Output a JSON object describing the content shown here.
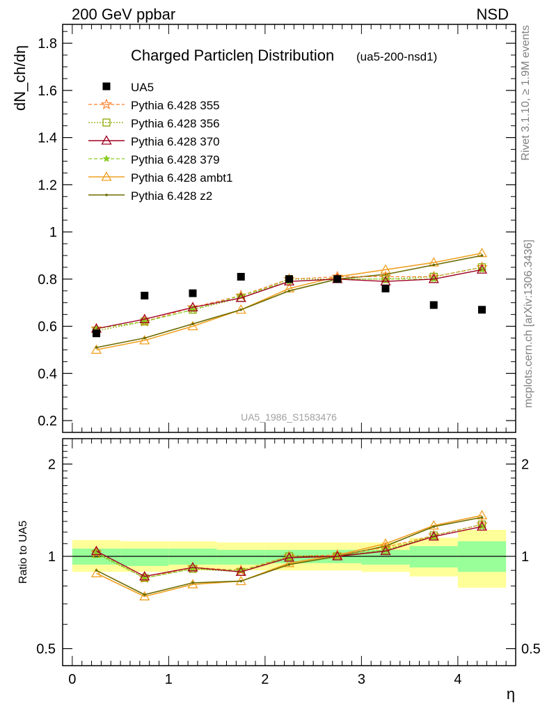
{
  "header": {
    "left": "200 GeV ppbar",
    "right": "NSD"
  },
  "side_texts": {
    "rivet": "Rivet 3.1.10, ≥ 1.9M events",
    "mcplots": "mcplots.cern.ch [arXiv:1306.3436]"
  },
  "colors": {
    "data": "#000000",
    "band_inner": "#99ff99",
    "band_outer": "#ffff99",
    "p355": "#ff7f2a",
    "p356": "#8aa800",
    "p370": "#a00022",
    "p379": "#88cc22",
    "ambt1": "#f0a020",
    "z2": "#6b6b00"
  },
  "chart_data": [
    {
      "type": "scatter",
      "title": "Charged Particleη Distribution",
      "title_suffix": "(ua5-200-nsd1)",
      "watermark": "UA5_1986_S1583476",
      "ylabel": "dN_ch/dη",
      "xlim": [
        -0.1,
        4.6
      ],
      "ylim": [
        0.15,
        1.88
      ],
      "yticks": [
        0.2,
        0.4,
        0.6,
        0.8,
        1,
        1.2,
        1.4,
        1.6,
        1.8
      ],
      "ytick_labels": [
        "0.2",
        "0.4",
        "0.6",
        "0.8",
        "1",
        "1.2",
        "1.4",
        "1.6",
        "1.8"
      ],
      "x": [
        0.25,
        0.75,
        1.25,
        1.75,
        2.25,
        2.75,
        3.25,
        3.75,
        4.25
      ],
      "legend_position": "top-left",
      "series": [
        {
          "name": "UA5",
          "key": "data",
          "values": [
            0.57,
            0.73,
            0.74,
            0.81,
            0.8,
            0.8,
            0.76,
            0.69,
            0.67
          ]
        },
        {
          "name": "Pythia 6.428 355",
          "key": "p355",
          "values": [
            0.59,
            0.62,
            0.68,
            0.73,
            0.8,
            0.81,
            0.81,
            0.81,
            0.85
          ]
        },
        {
          "name": "Pythia 6.428 356",
          "key": "p356",
          "values": [
            0.58,
            0.62,
            0.67,
            0.72,
            0.8,
            0.8,
            0.8,
            0.81,
            0.85
          ]
        },
        {
          "name": "Pythia 6.428 370",
          "key": "p370",
          "values": [
            0.59,
            0.63,
            0.68,
            0.72,
            0.79,
            0.8,
            0.79,
            0.8,
            0.84
          ]
        },
        {
          "name": "Pythia 6.428 379",
          "key": "p379",
          "values": [
            0.59,
            0.62,
            0.67,
            0.73,
            0.79,
            0.8,
            0.8,
            0.8,
            0.84
          ]
        },
        {
          "name": "Pythia 6.428 ambt1",
          "key": "ambt1",
          "values": [
            0.5,
            0.54,
            0.6,
            0.67,
            0.76,
            0.81,
            0.84,
            0.87,
            0.91
          ]
        },
        {
          "name": "Pythia 6.428 z2",
          "key": "z2",
          "values": [
            0.51,
            0.55,
            0.61,
            0.67,
            0.75,
            0.8,
            0.82,
            0.86,
            0.9
          ]
        }
      ]
    },
    {
      "type": "line",
      "ylabel": "Ratio to UA5",
      "xlabel": "η",
      "xlim": [
        -0.1,
        4.6
      ],
      "ylim": [
        0.44,
        2.42
      ],
      "yscale": "log",
      "yticks": [
        0.5,
        1,
        2
      ],
      "ytick_labels": [
        "0.5",
        "1",
        "2"
      ],
      "xticks": [
        0,
        1,
        2,
        3,
        4
      ],
      "xtick_labels": [
        "0",
        "1",
        "2",
        "3",
        "4"
      ],
      "x": [
        0.25,
        0.75,
        1.25,
        1.75,
        2.25,
        2.75,
        3.25,
        3.75,
        4.25
      ],
      "bin_edges": [
        0,
        0.5,
        1.0,
        1.5,
        2.0,
        2.5,
        3.0,
        3.5,
        4.0,
        4.5
      ],
      "band_outer": [
        [
          0.89,
          1.13
        ],
        [
          0.89,
          1.12
        ],
        [
          0.9,
          1.12
        ],
        [
          0.9,
          1.11
        ],
        [
          0.9,
          1.11
        ],
        [
          0.9,
          1.11
        ],
        [
          0.89,
          1.11
        ],
        [
          0.86,
          1.15
        ],
        [
          0.79,
          1.22
        ]
      ],
      "band_inner": [
        [
          0.94,
          1.06
        ],
        [
          0.93,
          1.06
        ],
        [
          0.94,
          1.06
        ],
        [
          0.94,
          1.05
        ],
        [
          0.95,
          1.05
        ],
        [
          0.95,
          1.05
        ],
        [
          0.94,
          1.05
        ],
        [
          0.92,
          1.08
        ],
        [
          0.89,
          1.12
        ]
      ],
      "series": [
        {
          "name": "Pythia 6.428 355",
          "key": "p355",
          "values": [
            1.03,
            0.85,
            0.92,
            0.9,
            1.0,
            1.01,
            1.07,
            1.17,
            1.27
          ]
        },
        {
          "name": "Pythia 6.428 356",
          "key": "p356",
          "values": [
            1.02,
            0.85,
            0.91,
            0.89,
            1.0,
            1.0,
            1.05,
            1.17,
            1.27
          ]
        },
        {
          "name": "Pythia 6.428 370",
          "key": "p370",
          "values": [
            1.04,
            0.86,
            0.92,
            0.89,
            0.99,
            1.0,
            1.04,
            1.16,
            1.25
          ]
        },
        {
          "name": "Pythia 6.428 379",
          "key": "p379",
          "values": [
            1.03,
            0.85,
            0.91,
            0.9,
            0.99,
            1.0,
            1.05,
            1.16,
            1.25
          ]
        },
        {
          "name": "Pythia 6.428 ambt1",
          "key": "ambt1",
          "values": [
            0.88,
            0.74,
            0.81,
            0.83,
            0.95,
            1.01,
            1.1,
            1.26,
            1.36
          ]
        },
        {
          "name": "Pythia 6.428 z2",
          "key": "z2",
          "values": [
            0.9,
            0.75,
            0.82,
            0.83,
            0.94,
            1.0,
            1.08,
            1.25,
            1.34
          ]
        }
      ]
    }
  ]
}
